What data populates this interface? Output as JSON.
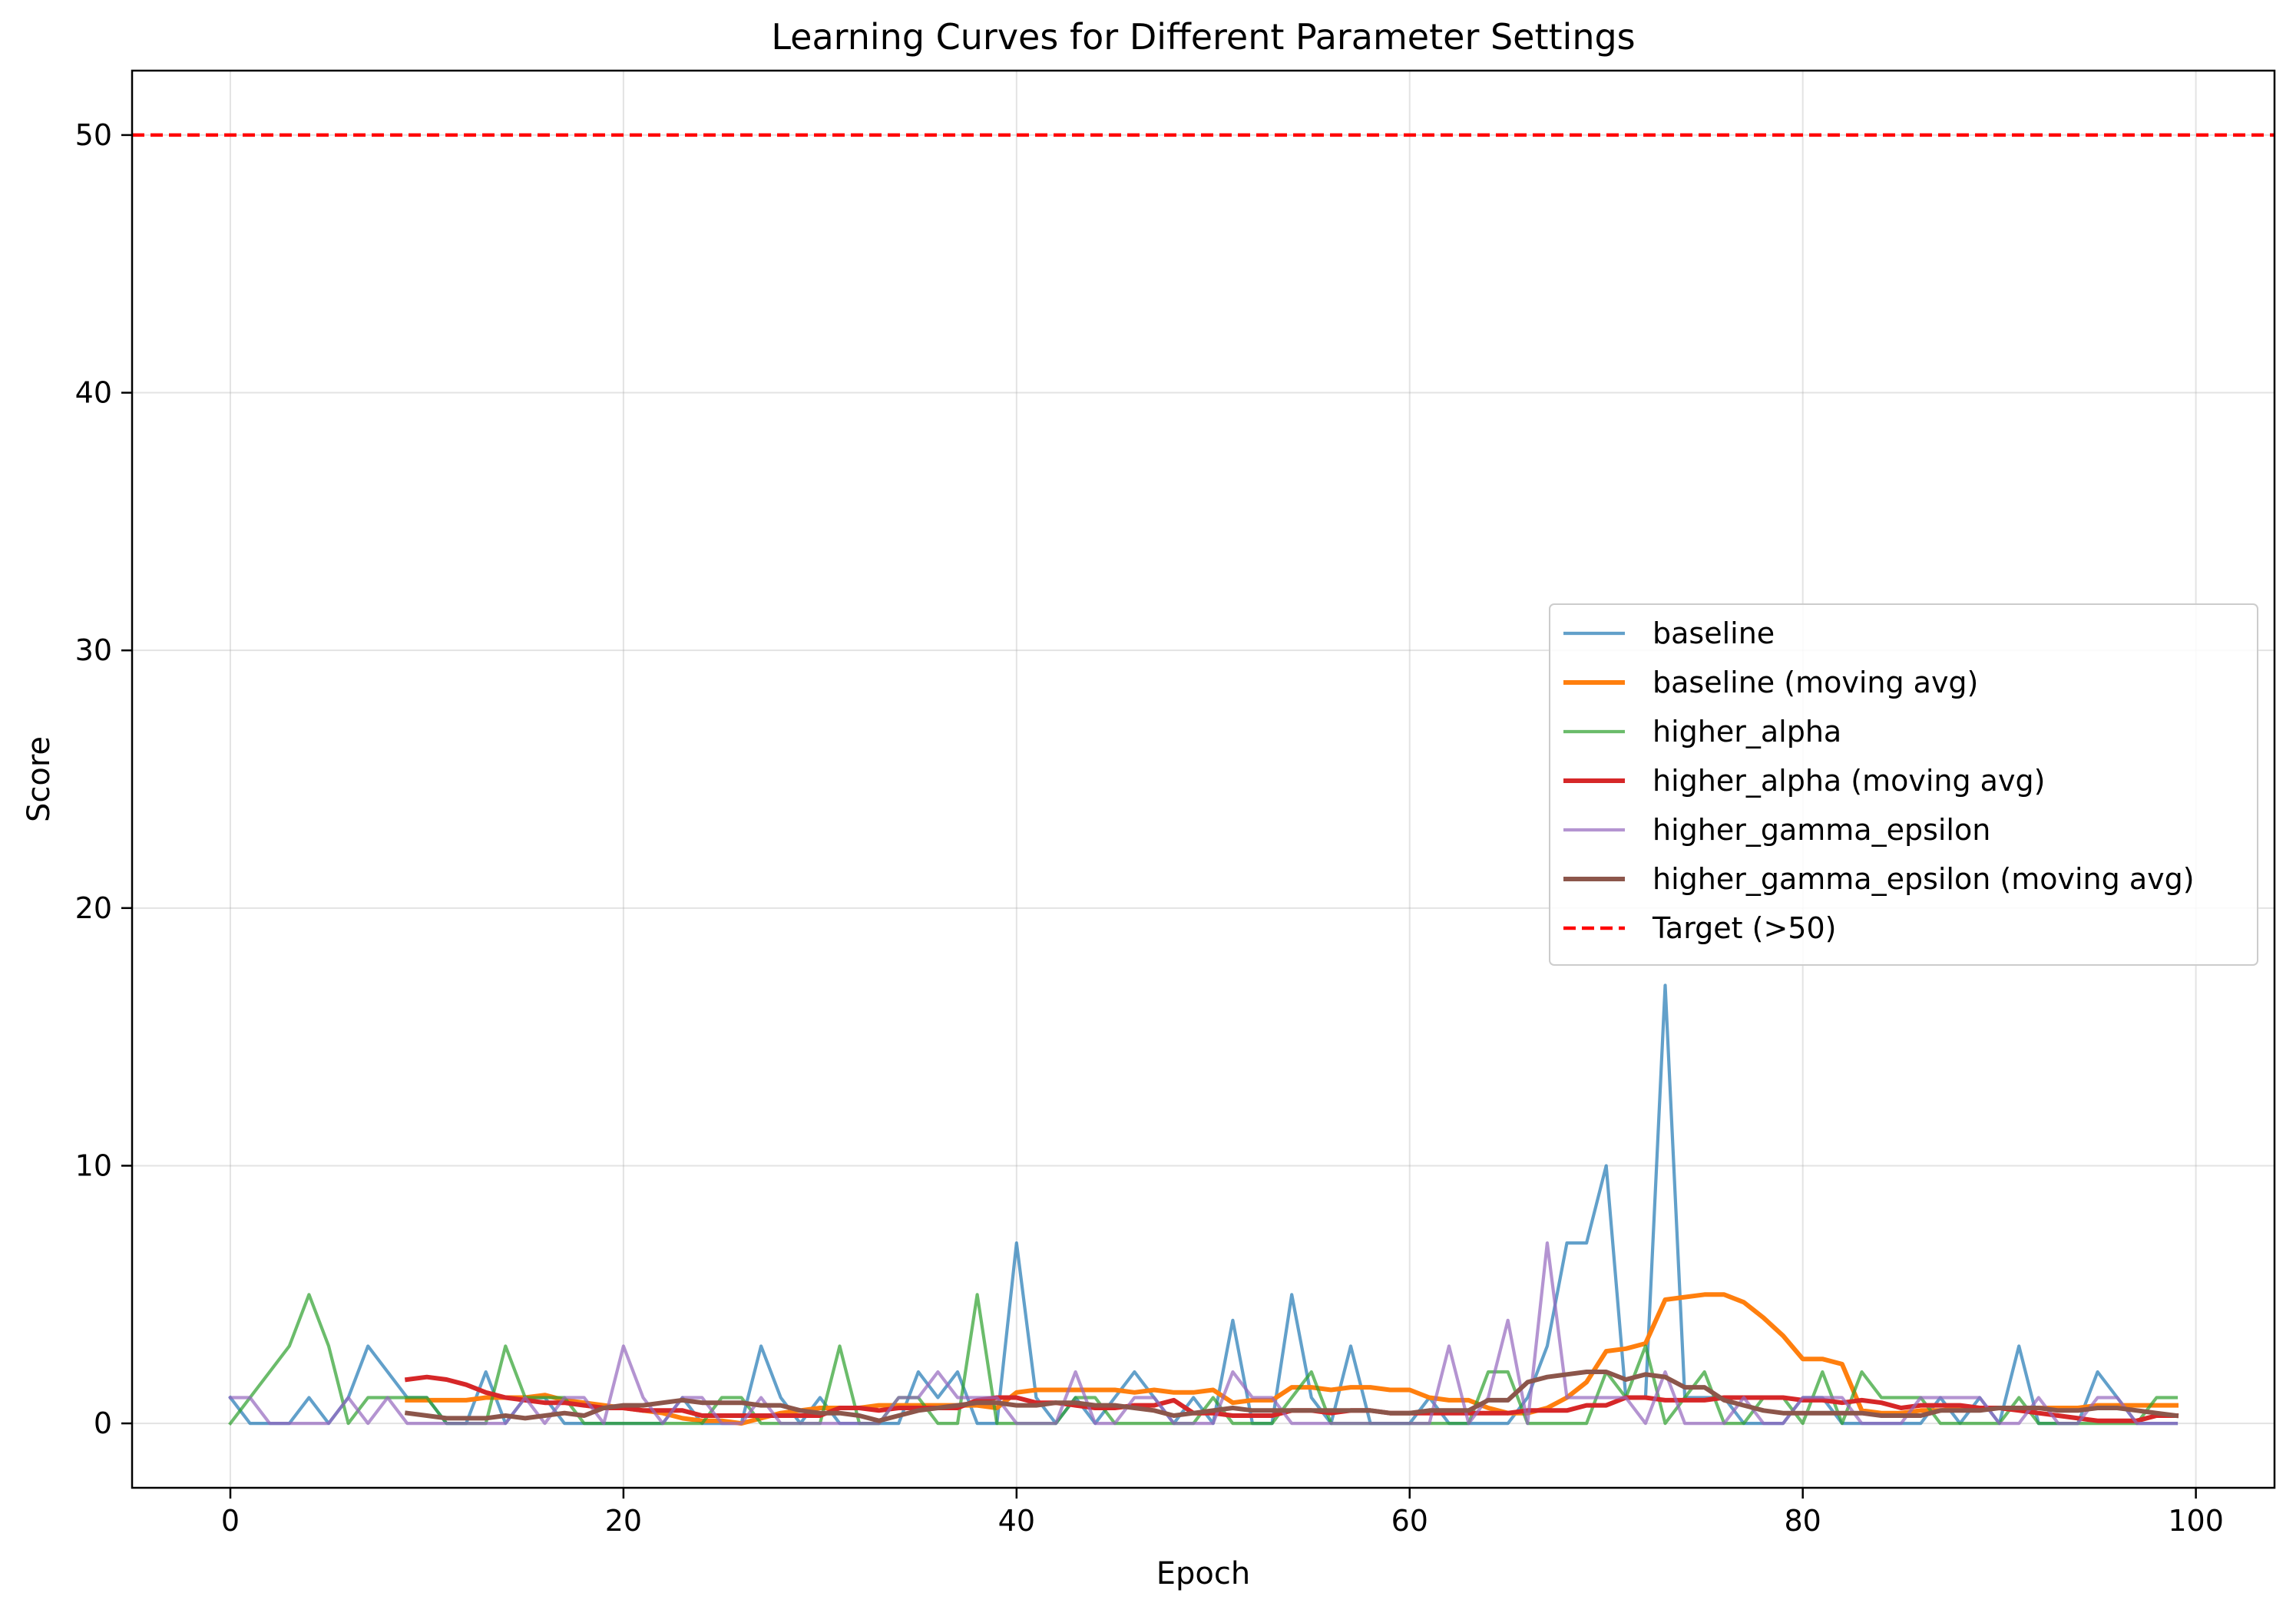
{
  "chart_data": {
    "type": "line",
    "title": "Learning Curves for Different Parameter Settings",
    "xlabel": "Epoch",
    "ylabel": "Score",
    "xlim": [
      -5,
      104
    ],
    "ylim": [
      -2.5,
      52.5
    ],
    "xticks": [
      0,
      20,
      40,
      60,
      80,
      100
    ],
    "yticks": [
      0,
      10,
      20,
      30,
      40,
      50
    ],
    "grid": true,
    "legend_position": "center-right",
    "series": [
      {
        "name": "baseline",
        "color": "#1f77b4",
        "style": "raw",
        "x_start": 0,
        "values": [
          1,
          0,
          0,
          0,
          1,
          0,
          1,
          3,
          2,
          1,
          1,
          0,
          0,
          2,
          0,
          1,
          1,
          0,
          0,
          0,
          0,
          0,
          0,
          1,
          0,
          0,
          0,
          3,
          1,
          0,
          1,
          0,
          0,
          0,
          0,
          2,
          1,
          2,
          0,
          0,
          7,
          1,
          0,
          1,
          0,
          1,
          2,
          1,
          0,
          1,
          0,
          4,
          0,
          0,
          5,
          1,
          0,
          3,
          0,
          0,
          0,
          1,
          0,
          0,
          0,
          0,
          1,
          3,
          7,
          7,
          10,
          1,
          1,
          17,
          1,
          1,
          1,
          0,
          0,
          0,
          1,
          1,
          0,
          0,
          0,
          0,
          0,
          1,
          0,
          1,
          0,
          3,
          0,
          0,
          0,
          2,
          1,
          0,
          0,
          0
        ]
      },
      {
        "name": "baseline (moving avg)",
        "color": "#ff7f0e",
        "style": "avg",
        "x_start": 9,
        "values": [
          0.9,
          0.9,
          0.9,
          0.9,
          1.0,
          1.0,
          1.0,
          1.1,
          0.9,
          0.8,
          0.7,
          0.6,
          0.5,
          0.4,
          0.2,
          0.1,
          0.1,
          0.0,
          0.2,
          0.4,
          0.5,
          0.6,
          0.6,
          0.6,
          0.7,
          0.7,
          0.7,
          0.7,
          0.7,
          0.7,
          0.6,
          1.2,
          1.3,
          1.3,
          1.3,
          1.3,
          1.3,
          1.2,
          1.3,
          1.2,
          1.2,
          1.3,
          0.8,
          0.9,
          0.9,
          1.4,
          1.4,
          1.3,
          1.4,
          1.4,
          1.3,
          1.3,
          1.0,
          0.9,
          0.9,
          0.6,
          0.4,
          0.4,
          0.6,
          1.0,
          1.6,
          2.8,
          2.9,
          3.1,
          4.8,
          4.9,
          5.0,
          5.0,
          4.7,
          4.1,
          3.4,
          2.5,
          2.5,
          2.3,
          0.5,
          0.4,
          0.4,
          0.5,
          0.5,
          0.6,
          0.6,
          0.6,
          0.6,
          0.6,
          0.6,
          0.6,
          0.7,
          0.7,
          0.7,
          0.7,
          0.7
        ]
      },
      {
        "name": "higher_alpha",
        "color": "#2ca02c",
        "style": "raw",
        "x_start": 0,
        "values": [
          0,
          1,
          2,
          3,
          5,
          3,
          0,
          1,
          1,
          1,
          1,
          0,
          0,
          0,
          3,
          1,
          1,
          1,
          0,
          0,
          0,
          0,
          0,
          0,
          0,
          1,
          1,
          0,
          0,
          0,
          0,
          3,
          0,
          0,
          1,
          1,
          0,
          0,
          5,
          0,
          0,
          0,
          0,
          1,
          1,
          0,
          0,
          0,
          0,
          0,
          1,
          0,
          0,
          0,
          1,
          2,
          0,
          0,
          0,
          0,
          0,
          0,
          0,
          0,
          2,
          2,
          0,
          0,
          0,
          0,
          2,
          1,
          3,
          0,
          1,
          2,
          0,
          0,
          1,
          1,
          0,
          2,
          0,
          2,
          1,
          1,
          1,
          0,
          0,
          0,
          0,
          1,
          0,
          0,
          0,
          0,
          0,
          0,
          1,
          1
        ]
      },
      {
        "name": "higher_alpha (moving avg)",
        "color": "#d62728",
        "style": "avg",
        "x_start": 9,
        "values": [
          1.7,
          1.8,
          1.7,
          1.5,
          1.2,
          1.0,
          0.9,
          0.8,
          0.8,
          0.7,
          0.6,
          0.6,
          0.5,
          0.5,
          0.5,
          0.3,
          0.3,
          0.3,
          0.3,
          0.3,
          0.3,
          0.3,
          0.6,
          0.6,
          0.5,
          0.6,
          0.6,
          0.6,
          0.6,
          0.9,
          1.0,
          1.0,
          0.8,
          0.8,
          0.7,
          0.6,
          0.6,
          0.7,
          0.7,
          0.9,
          0.4,
          0.4,
          0.3,
          0.3,
          0.3,
          0.5,
          0.5,
          0.4,
          0.5,
          0.5,
          0.4,
          0.4,
          0.4,
          0.4,
          0.4,
          0.4,
          0.4,
          0.5,
          0.5,
          0.5,
          0.7,
          0.7,
          1.0,
          1.0,
          0.9,
          0.9,
          0.9,
          1.0,
          1.0,
          1.0,
          1.0,
          0.9,
          0.9,
          0.8,
          0.9,
          0.8,
          0.6,
          0.7,
          0.7,
          0.7,
          0.6,
          0.6,
          0.5,
          0.4,
          0.3,
          0.2,
          0.1,
          0.1,
          0.1,
          0.3,
          0.3
        ]
      },
      {
        "name": "higher_gamma_epsilon",
        "color": "#9467bd",
        "style": "raw",
        "x_start": 0,
        "values": [
          1,
          1,
          0,
          0,
          0,
          0,
          1,
          0,
          1,
          0,
          0,
          0,
          0,
          0,
          0,
          1,
          0,
          1,
          1,
          0,
          3,
          1,
          0,
          1,
          1,
          0,
          0,
          1,
          0,
          0,
          0,
          0,
          0,
          0,
          1,
          1,
          2,
          1,
          1,
          1,
          0,
          0,
          0,
          2,
          0,
          0,
          1,
          1,
          0,
          0,
          0,
          2,
          1,
          1,
          0,
          0,
          0,
          0,
          0,
          0,
          0,
          0,
          3,
          0,
          1,
          4,
          0,
          7,
          1,
          1,
          1,
          1,
          0,
          2,
          0,
          0,
          0,
          1,
          0,
          0,
          1,
          1,
          1,
          0,
          0,
          0,
          1,
          1,
          1,
          1,
          0,
          0,
          1,
          0,
          0,
          1,
          1,
          0,
          0,
          0
        ]
      },
      {
        "name": "higher_gamma_epsilon (moving avg)",
        "color": "#8c564b",
        "style": "avg",
        "x_start": 9,
        "values": [
          0.4,
          0.3,
          0.2,
          0.2,
          0.2,
          0.3,
          0.2,
          0.3,
          0.4,
          0.3,
          0.6,
          0.7,
          0.7,
          0.8,
          0.9,
          0.8,
          0.8,
          0.8,
          0.7,
          0.7,
          0.5,
          0.4,
          0.4,
          0.3,
          0.1,
          0.3,
          0.5,
          0.6,
          0.7,
          0.8,
          0.8,
          0.7,
          0.7,
          0.8,
          0.8,
          0.7,
          0.7,
          0.6,
          0.5,
          0.3,
          0.4,
          0.5,
          0.6,
          0.5,
          0.5,
          0.5,
          0.5,
          0.5,
          0.5,
          0.5,
          0.4,
          0.4,
          0.5,
          0.5,
          0.5,
          0.9,
          0.9,
          1.6,
          1.8,
          1.9,
          2.0,
          2.0,
          1.7,
          1.9,
          1.8,
          1.4,
          1.4,
          0.9,
          0.7,
          0.5,
          0.4,
          0.4,
          0.4,
          0.4,
          0.4,
          0.3,
          0.3,
          0.3,
          0.5,
          0.5,
          0.5,
          0.6,
          0.6,
          0.6,
          0.5,
          0.5,
          0.6,
          0.6,
          0.5,
          0.4,
          0.3
        ]
      }
    ],
    "reference_lines": [
      {
        "name": "Target (>50)",
        "y": 50,
        "color": "#ff0000",
        "style": "dashed"
      }
    ]
  }
}
